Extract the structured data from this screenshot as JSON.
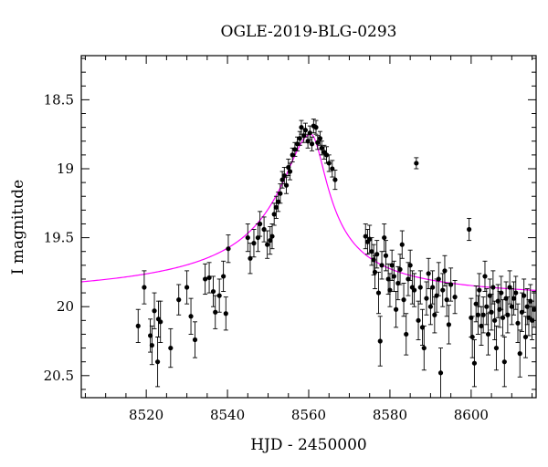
{
  "chart_data": {
    "type": "scatter",
    "title": "OGLE-2019-BLG-0293",
    "xlabel": "HJD - 2450000",
    "ylabel": "I magnitude",
    "xlim": [
      8504,
      8616
    ],
    "ylim": [
      20.66,
      18.18
    ],
    "y_inverted": true,
    "x_ticks": [
      8520,
      8540,
      8560,
      8580,
      8600
    ],
    "y_ticks": [
      18.5,
      19,
      19.5,
      20,
      20.5
    ],
    "y_tick_labels": [
      "18.5",
      "19",
      "19.5",
      "20",
      "20.5"
    ],
    "grid": false,
    "legend": "none",
    "colors": {
      "data": "#000000",
      "model": "#ff00ff"
    },
    "model": {
      "name": "",
      "base_mag": 19.97,
      "t0": 8560.5,
      "peak_mag": 18.75,
      "widths": {
        "left": 7.0,
        "right": 4.0
      }
    },
    "points": [
      [
        8518.0,
        20.14,
        0.12
      ],
      [
        8519.5,
        19.86,
        0.12
      ],
      [
        8521.0,
        20.21,
        0.12
      ],
      [
        8521.4,
        20.28,
        0.14
      ],
      [
        8522.0,
        20.03,
        0.13
      ],
      [
        8522.8,
        20.4,
        0.18
      ],
      [
        8523.0,
        20.09,
        0.13
      ],
      [
        8523.5,
        20.11,
        0.15
      ],
      [
        8526.0,
        20.3,
        0.14
      ],
      [
        8528.0,
        19.95,
        0.11
      ],
      [
        8530.0,
        19.86,
        0.12
      ],
      [
        8531.0,
        20.07,
        0.13
      ],
      [
        8532.0,
        20.24,
        0.13
      ],
      [
        8534.5,
        19.8,
        0.11
      ],
      [
        8535.5,
        19.79,
        0.11
      ],
      [
        8536.5,
        19.89,
        0.11
      ],
      [
        8537.0,
        20.04,
        0.12
      ],
      [
        8538.0,
        19.92,
        0.12
      ],
      [
        8539.0,
        19.78,
        0.11
      ],
      [
        8539.6,
        20.05,
        0.12
      ],
      [
        8540.2,
        19.58,
        0.1
      ],
      [
        8545.0,
        19.5,
        0.1
      ],
      [
        8545.6,
        19.65,
        0.11
      ],
      [
        8546.5,
        19.54,
        0.1
      ],
      [
        8547.5,
        19.5,
        0.1
      ],
      [
        8548.0,
        19.4,
        0.09
      ],
      [
        8549.0,
        19.44,
        0.09
      ],
      [
        8549.8,
        19.55,
        0.1
      ],
      [
        8550.5,
        19.52,
        0.1
      ],
      [
        8551.0,
        19.49,
        0.09
      ],
      [
        8551.5,
        19.33,
        0.08
      ],
      [
        8552.0,
        19.28,
        0.08
      ],
      [
        8552.5,
        19.24,
        0.07
      ],
      [
        8553.0,
        19.18,
        0.07
      ],
      [
        8553.5,
        19.08,
        0.06
      ],
      [
        8554.0,
        19.05,
        0.06
      ],
      [
        8554.5,
        19.12,
        0.06
      ],
      [
        8555.0,
        18.99,
        0.06
      ],
      [
        8555.4,
        19.02,
        0.06
      ],
      [
        8556.0,
        18.9,
        0.05
      ],
      [
        8556.6,
        18.86,
        0.05
      ],
      [
        8557.2,
        18.82,
        0.05
      ],
      [
        8557.8,
        18.78,
        0.05
      ],
      [
        8558.2,
        18.7,
        0.05
      ],
      [
        8558.8,
        18.76,
        0.05
      ],
      [
        8559.2,
        18.72,
        0.05
      ],
      [
        8559.8,
        18.8,
        0.05
      ],
      [
        8560.3,
        18.74,
        0.05
      ],
      [
        8560.8,
        18.82,
        0.05
      ],
      [
        8561.2,
        18.69,
        0.05
      ],
      [
        8561.8,
        18.7,
        0.05
      ],
      [
        8562.2,
        18.81,
        0.05
      ],
      [
        8562.8,
        18.78,
        0.05
      ],
      [
        8563.2,
        18.85,
        0.05
      ],
      [
        8563.8,
        18.88,
        0.05
      ],
      [
        8564.4,
        18.9,
        0.06
      ],
      [
        8565.0,
        18.96,
        0.06
      ],
      [
        8565.8,
        19.0,
        0.06
      ],
      [
        8566.5,
        19.08,
        0.07
      ],
      [
        8574.0,
        19.49,
        0.09
      ],
      [
        8574.5,
        19.53,
        0.09
      ],
      [
        8575.0,
        19.51,
        0.1
      ],
      [
        8575.5,
        19.6,
        0.1
      ],
      [
        8576.0,
        19.66,
        0.11
      ],
      [
        8576.3,
        19.75,
        0.12
      ],
      [
        8576.8,
        19.62,
        0.1
      ],
      [
        8577.2,
        19.9,
        0.15
      ],
      [
        8577.6,
        20.25,
        0.18
      ],
      [
        8578.0,
        19.7,
        0.1
      ],
      [
        8578.6,
        19.5,
        0.1
      ],
      [
        8579.0,
        19.63,
        0.11
      ],
      [
        8579.6,
        19.8,
        0.11
      ],
      [
        8580.0,
        19.88,
        0.12
      ],
      [
        8580.5,
        19.7,
        0.11
      ],
      [
        8581.0,
        19.78,
        0.11
      ],
      [
        8581.5,
        20.02,
        0.13
      ],
      [
        8582.0,
        19.83,
        0.12
      ],
      [
        8582.5,
        19.73,
        0.11
      ],
      [
        8583.0,
        19.55,
        0.1
      ],
      [
        8583.4,
        19.95,
        0.12
      ],
      [
        8584.0,
        20.2,
        0.15
      ],
      [
        8584.5,
        19.8,
        0.12
      ],
      [
        8585.0,
        19.7,
        0.11
      ],
      [
        8585.5,
        19.86,
        0.12
      ],
      [
        8586.0,
        19.88,
        0.12
      ],
      [
        8586.5,
        18.96,
        0.04
      ],
      [
        8587.0,
        20.1,
        0.14
      ],
      [
        8587.5,
        19.86,
        0.12
      ],
      [
        8588.0,
        20.15,
        0.13
      ],
      [
        8588.4,
        20.3,
        0.16
      ],
      [
        8589.0,
        19.94,
        0.12
      ],
      [
        8589.5,
        19.76,
        0.11
      ],
      [
        8590.0,
        20.0,
        0.13
      ],
      [
        8590.5,
        19.86,
        0.12
      ],
      [
        8591.0,
        20.06,
        0.13
      ],
      [
        8591.5,
        19.92,
        0.12
      ],
      [
        8592.0,
        19.8,
        0.12
      ],
      [
        8592.5,
        20.48,
        0.18
      ],
      [
        8593.0,
        19.88,
        0.12
      ],
      [
        8593.5,
        19.74,
        0.11
      ],
      [
        8594.0,
        19.95,
        0.12
      ],
      [
        8594.5,
        20.13,
        0.14
      ],
      [
        8595.0,
        19.84,
        0.12
      ],
      [
        8596.0,
        19.93,
        0.12
      ],
      [
        8599.5,
        19.44,
        0.08
      ],
      [
        8600.0,
        20.08,
        0.14
      ],
      [
        8600.3,
        20.22,
        0.15
      ],
      [
        8600.8,
        20.41,
        0.17
      ],
      [
        8601.2,
        19.98,
        0.13
      ],
      [
        8601.7,
        20.06,
        0.14
      ],
      [
        8602.0,
        19.88,
        0.12
      ],
      [
        8602.5,
        20.14,
        0.14
      ],
      [
        8603.0,
        20.06,
        0.13
      ],
      [
        8603.4,
        19.78,
        0.11
      ],
      [
        8603.8,
        20.0,
        0.13
      ],
      [
        8604.2,
        20.2,
        0.15
      ],
      [
        8604.6,
        19.92,
        0.12
      ],
      [
        8605.0,
        20.04,
        0.13
      ],
      [
        8605.4,
        19.86,
        0.12
      ],
      [
        8605.8,
        20.1,
        0.14
      ],
      [
        8606.2,
        20.3,
        0.16
      ],
      [
        8606.6,
        19.96,
        0.12
      ],
      [
        8607.0,
        20.02,
        0.13
      ],
      [
        8607.4,
        19.9,
        0.12
      ],
      [
        8607.8,
        20.08,
        0.13
      ],
      [
        8608.2,
        20.4,
        0.18
      ],
      [
        8608.6,
        19.94,
        0.12
      ],
      [
        8609.0,
        20.06,
        0.13
      ],
      [
        8609.5,
        19.86,
        0.12
      ],
      [
        8610.0,
        20.0,
        0.13
      ],
      [
        8610.5,
        19.94,
        0.12
      ],
      [
        8611.0,
        19.9,
        0.12
      ],
      [
        8611.5,
        20.12,
        0.14
      ],
      [
        8612.0,
        20.34,
        0.17
      ],
      [
        8612.5,
        20.04,
        0.14
      ],
      [
        8613.0,
        19.92,
        0.12
      ],
      [
        8613.4,
        20.22,
        0.15
      ],
      [
        8613.8,
        20.0,
        0.13
      ],
      [
        8614.2,
        20.08,
        0.13
      ],
      [
        8614.6,
        19.96,
        0.12
      ],
      [
        8615.0,
        20.1,
        0.14
      ],
      [
        8615.5,
        20.02,
        0.13
      ]
    ]
  }
}
